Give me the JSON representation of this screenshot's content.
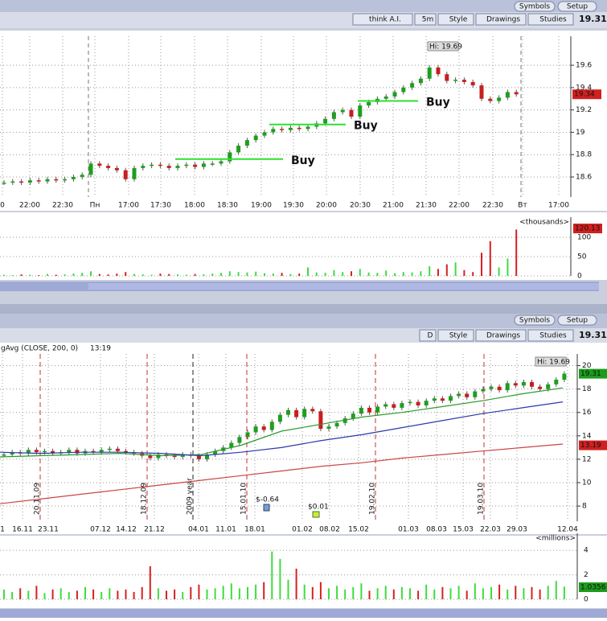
{
  "top": {
    "toolbar": {
      "symbols": "Symbols",
      "setup": "Setup",
      "buttons": [
        "think A.I.",
        "5m",
        "Style",
        "Drawings",
        "Studies"
      ],
      "price": 19.31
    },
    "price_chart": {
      "type": "candlestick",
      "hi": "Hi: 19.69",
      "last": 19.34,
      "ylim": [
        18.42,
        19.86
      ],
      "yticks": [
        18.6,
        18.8,
        19,
        19.2,
        19.4,
        19.6
      ],
      "x_labels": [
        "0",
        "22:00",
        "22:30",
        "Пн",
        "17:00",
        "17:30",
        "18:00",
        "18:30",
        "19:00",
        "19:30",
        "20:00",
        "20:30",
        "21:00",
        "21:30",
        "22:00",
        "22:30",
        "Вт",
        "17:00"
      ],
      "closes": [
        18.55,
        18.56,
        18.55,
        18.57,
        18.56,
        18.58,
        18.57,
        18.58,
        18.6,
        18.62,
        18.72,
        18.7,
        18.68,
        18.66,
        18.58,
        18.68,
        18.7,
        18.71,
        18.7,
        18.68,
        18.7,
        18.71,
        18.69,
        18.72,
        18.72,
        18.74,
        18.82,
        18.88,
        18.93,
        18.97,
        19.0,
        19.03,
        19.02,
        19.04,
        19.03,
        19.05,
        19.08,
        19.12,
        19.18,
        19.2,
        19.14,
        19.24,
        19.27,
        19.3,
        19.32,
        19.36,
        19.4,
        19.44,
        19.48,
        19.58,
        19.52,
        19.46,
        19.47,
        19.45,
        19.42,
        19.3,
        19.28,
        19.31,
        19.36,
        19.34
      ],
      "buy_lines": [
        {
          "label": "Buy",
          "value": 18.76
        },
        {
          "label": "Buy",
          "value": 19.07
        },
        {
          "label": "Buy",
          "value": 19.28
        }
      ]
    },
    "volume_chart": {
      "type": "bar",
      "unit": "<thousands>",
      "last": 120.13,
      "ylim": [
        0,
        127
      ],
      "yticks": [
        0,
        50,
        100
      ],
      "values": [
        3,
        2,
        4,
        3,
        2,
        5,
        3,
        4,
        6,
        8,
        12,
        5,
        4,
        6,
        10,
        5,
        4,
        3,
        6,
        5,
        4,
        3,
        5,
        4,
        6,
        8,
        12,
        10,
        9,
        11,
        7,
        6,
        8,
        5,
        6,
        22,
        9,
        8,
        15,
        10,
        12,
        18,
        9,
        8,
        14,
        7,
        10,
        9,
        12,
        25,
        18,
        30,
        35,
        15,
        10,
        60,
        90,
        22,
        45,
        120.13
      ]
    }
  },
  "bottom": {
    "toolbar": {
      "symbols": "Symbols",
      "setup": "Setup",
      "buttons": [
        "D",
        "Style",
        "Drawings",
        "Studies"
      ],
      "price": 19.31
    },
    "price_chart": {
      "type": "candlestick",
      "study": "gAvg (CLOSE, 200, 0)",
      "time": "13:19",
      "hi": "Hi: 19.69",
      "last": 19.31,
      "ma_last": 13.19,
      "ylim": [
        6.7,
        21.0
      ],
      "yticks": [
        8,
        10,
        12,
        14,
        16,
        18,
        20
      ],
      "x_labels": [
        "1",
        "16.11",
        "23.11",
        "07.12",
        "14.12",
        "21.12",
        "04.01",
        "11.01",
        "18.01",
        "01.02",
        "08.02",
        "15.02",
        "01.03",
        "08.03",
        "15.03",
        "22.03",
        "29.03",
        "12.04"
      ],
      "markers": [
        "20.11.09",
        "18.12.09",
        "2009 year",
        "15.01.10",
        "19.02.10",
        "19.03.10"
      ],
      "annotations": [
        "$-0.64",
        "$0.01"
      ],
      "closes": [
        12.4,
        12.6,
        12.5,
        12.8,
        12.6,
        12.7,
        12.5,
        12.6,
        12.8,
        12.5,
        12.7,
        12.6,
        12.8,
        12.9,
        12.7,
        12.6,
        12.5,
        12.3,
        12.1,
        12.4,
        12.3,
        12.2,
        12.4,
        12.3,
        12.0,
        12.4,
        12.7,
        13.0,
        13.4,
        13.9,
        14.3,
        14.8,
        14.5,
        15.2,
        15.8,
        16.2,
        15.6,
        16.3,
        16.1,
        14.6,
        14.8,
        15.1,
        15.5,
        15.9,
        16.4,
        16.0,
        16.5,
        16.7,
        16.4,
        16.8,
        16.9,
        16.6,
        17.0,
        17.2,
        17.0,
        17.4,
        17.6,
        17.3,
        17.8,
        18.0,
        18.2,
        17.9,
        18.5,
        18.3,
        18.6,
        18.2,
        18.0,
        18.4,
        18.8,
        19.31
      ],
      "averages": [
        {
          "color": "#2a9a2a",
          "values": [
            12.2,
            12.3,
            12.4,
            12.5,
            12.3,
            12.4,
            13.2,
            14.4,
            15.0,
            15.6,
            16.0,
            16.5,
            17.0,
            17.6,
            18.1
          ]
        },
        {
          "color": "#2a3aaa",
          "values": [
            12.6,
            12.5,
            12.6,
            12.6,
            12.5,
            12.3,
            12.6,
            13.0,
            13.6,
            14.1,
            14.7,
            15.3,
            15.9,
            16.4,
            16.9
          ]
        },
        {
          "color": "#cc4444",
          "values": [
            8.2,
            8.6,
            9.0,
            9.4,
            9.8,
            10.2,
            10.6,
            11.0,
            11.4,
            11.7,
            12.1,
            12.4,
            12.7,
            13.0,
            13.3
          ]
        }
      ]
    },
    "volume_chart": {
      "type": "bar",
      "unit": "<millions>",
      "last": 1.0356,
      "ylim": [
        0,
        4.6
      ],
      "yticks": [
        0,
        2,
        4
      ],
      "values": [
        0.8,
        0.6,
        0.9,
        0.7,
        1.1,
        0.5,
        0.8,
        0.9,
        0.6,
        0.7,
        1.0,
        0.8,
        0.6,
        0.9,
        0.7,
        0.8,
        0.6,
        1.0,
        2.7,
        0.9,
        0.7,
        0.8,
        0.6,
        1.0,
        1.2,
        0.8,
        0.9,
        1.1,
        1.3,
        0.9,
        1.0,
        1.2,
        1.4,
        3.9,
        3.3,
        1.6,
        2.5,
        1.2,
        1.0,
        1.4,
        0.9,
        1.1,
        0.8,
        1.0,
        1.3,
        0.7,
        0.9,
        1.1,
        0.8,
        1.0,
        0.9,
        0.7,
        1.2,
        0.8,
        1.0,
        0.9,
        1.1,
        0.7,
        1.3,
        0.9,
        1.0,
        1.2,
        0.8,
        1.1,
        0.9,
        1.0,
        0.8,
        1.1,
        1.5,
        1.0356
      ]
    }
  }
}
